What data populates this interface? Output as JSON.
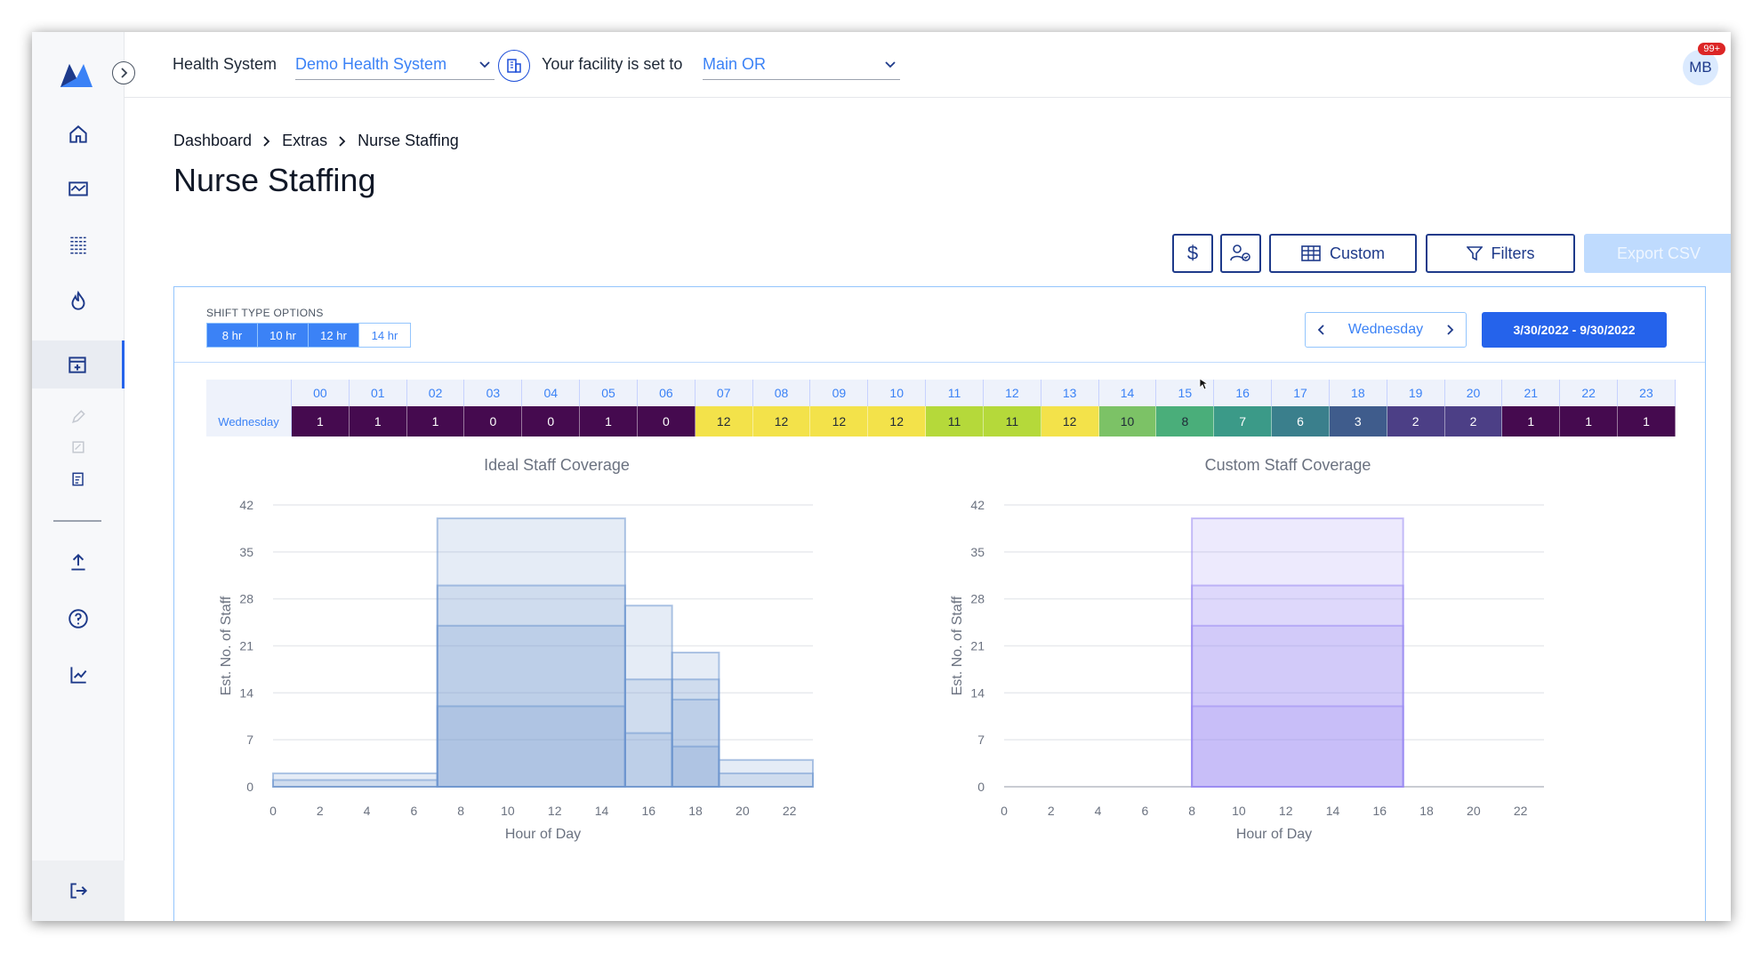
{
  "topbar": {
    "health_system_label": "Health System",
    "health_system_value": "Demo Health System",
    "facility_label": "Your facility is set to",
    "facility_value": "Main OR",
    "avatar_initials": "MB",
    "notification_count": "99+"
  },
  "breadcrumb": [
    "Dashboard",
    "Extras",
    "Nurse Staffing"
  ],
  "page_title": "Nurse Staffing",
  "toolbar": {
    "dollar_label": "$",
    "custom_label": "Custom",
    "filters_label": "Filters",
    "export_label": "Export CSV"
  },
  "shift": {
    "title": "SHIFT TYPE OPTIONS",
    "options": [
      "8 hr",
      "10 hr",
      "12 hr",
      "14 hr"
    ],
    "selected": [
      "8 hr",
      "10 hr",
      "12 hr"
    ]
  },
  "day_nav": {
    "day": "Wednesday"
  },
  "date_range": "3/30/2022 - 9/30/2022",
  "heatmap": {
    "row_label": "Wednesday",
    "hours": [
      "00",
      "01",
      "02",
      "03",
      "04",
      "05",
      "06",
      "07",
      "08",
      "09",
      "10",
      "11",
      "12",
      "13",
      "14",
      "15",
      "16",
      "17",
      "18",
      "19",
      "20",
      "21",
      "22",
      "23"
    ],
    "values": [
      1,
      1,
      1,
      0,
      0,
      1,
      0,
      12,
      12,
      12,
      12,
      11,
      11,
      12,
      10,
      8,
      7,
      6,
      3,
      2,
      2,
      1,
      1,
      1
    ],
    "colors": [
      "#450a4f",
      "#450a4f",
      "#450a4f",
      "#450a4f",
      "#450a4f",
      "#450a4f",
      "#450a4f",
      "#f3e24a",
      "#f3e24a",
      "#f3e24a",
      "#f3e24a",
      "#b5d93a",
      "#b5d93a",
      "#f3e24a",
      "#7cc266",
      "#4aae7a",
      "#3b9a88",
      "#3a7f8c",
      "#3f5c8c",
      "#4c3f86",
      "#4c3f86",
      "#450a4f",
      "#450a4f",
      "#450a4f"
    ]
  },
  "chart_data": [
    {
      "type": "area",
      "title": "Ideal Staff Coverage",
      "xlabel": "Hour of Day",
      "ylabel": "Est. No. of Staff",
      "xlim": [
        0,
        23
      ],
      "ylim": [
        0,
        42
      ],
      "xticks": [
        0,
        2,
        4,
        6,
        8,
        10,
        12,
        14,
        16,
        18,
        20,
        22
      ],
      "yticks": [
        0,
        7,
        14,
        21,
        28,
        35,
        42
      ],
      "color": "#6f97cf",
      "steps": [
        {
          "x0": 0,
          "x1": 7,
          "layers": [
            1,
            2
          ]
        },
        {
          "x0": 7,
          "x1": 15,
          "layers": [
            12,
            24,
            30,
            40
          ]
        },
        {
          "x0": 15,
          "x1": 17,
          "layers": [
            8,
            16,
            27
          ]
        },
        {
          "x0": 17,
          "x1": 19,
          "layers": [
            6,
            13,
            16,
            20
          ]
        },
        {
          "x0": 19,
          "x1": 23,
          "layers": [
            2,
            4
          ]
        }
      ]
    },
    {
      "type": "area",
      "title": "Custom Staff Coverage",
      "xlabel": "Hour of Day",
      "ylabel": "Est. No. of Staff",
      "xlim": [
        0,
        23
      ],
      "ylim": [
        0,
        42
      ],
      "xticks": [
        0,
        2,
        4,
        6,
        8,
        10,
        12,
        14,
        16,
        18,
        20,
        22
      ],
      "yticks": [
        0,
        7,
        14,
        21,
        28,
        35,
        42
      ],
      "color": "#9b8bf2",
      "steps": [
        {
          "x0": 8,
          "x1": 17,
          "layers": [
            12,
            24,
            30,
            40
          ]
        }
      ]
    }
  ]
}
